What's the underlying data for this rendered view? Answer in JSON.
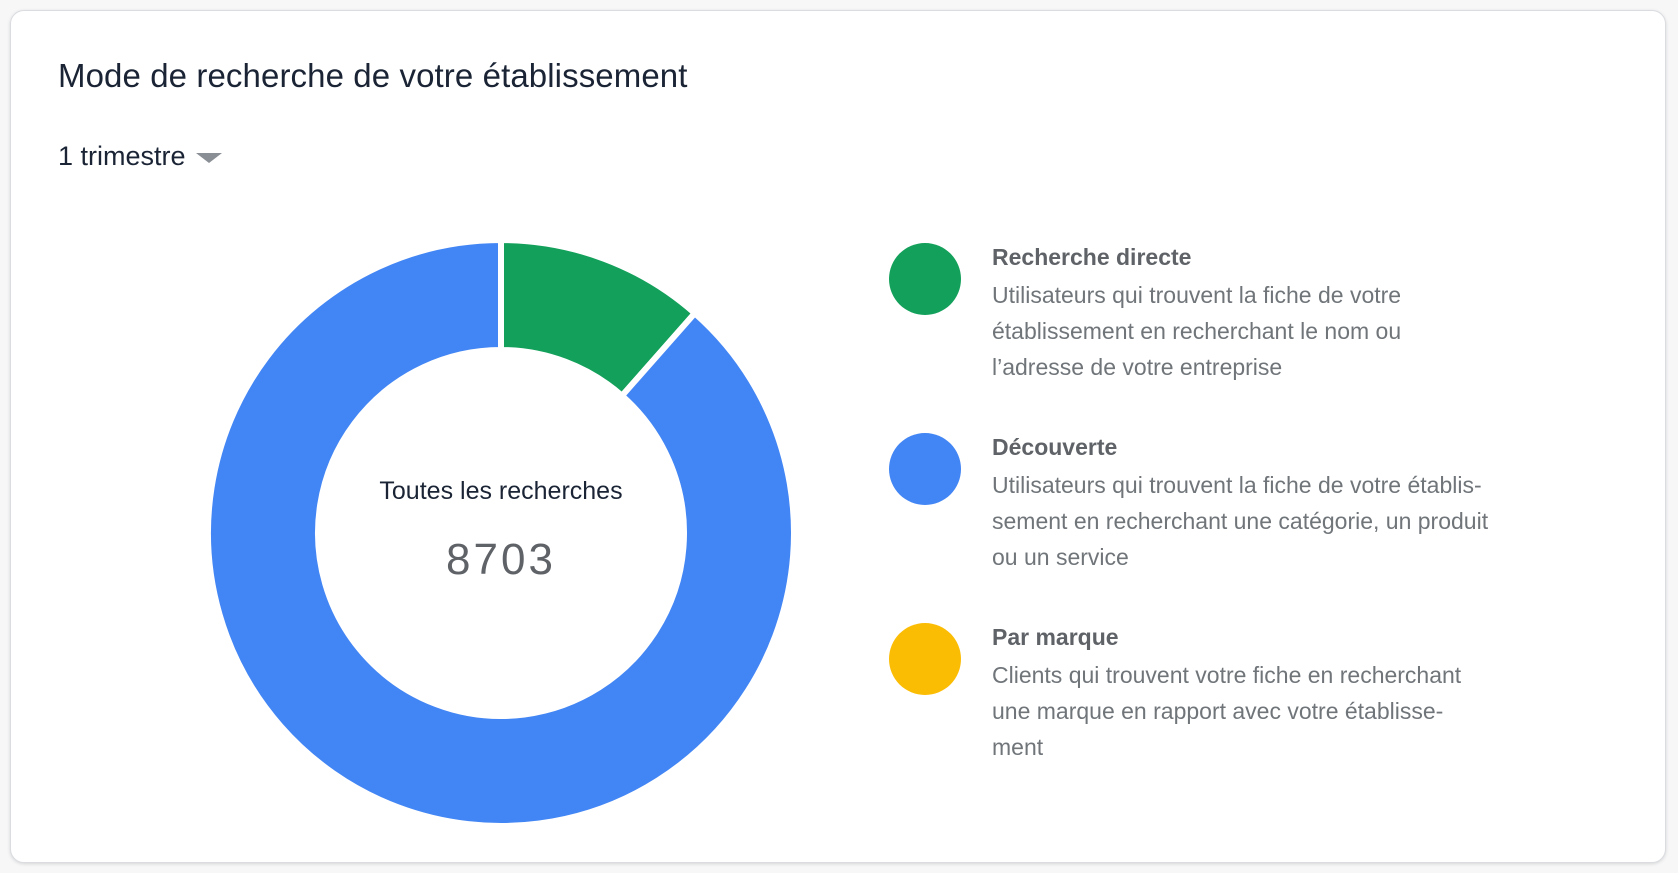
{
  "card": {
    "title": "Mode de recherche de votre établissement",
    "period": {
      "selected": "1 trimestre",
      "icon": "chevron-down-icon"
    }
  },
  "donut": {
    "center_label": "Toutes les recherches",
    "center_value": "8703"
  },
  "chart_data": {
    "type": "pie",
    "subtype": "donut",
    "title": "",
    "total_label": "Toutes les recherches",
    "total": 8703,
    "categories": [
      "Recherche directe",
      "Découverte",
      "Par marque"
    ],
    "values": [
      0.115,
      0.885,
      0.0
    ],
    "value_unit": "fraction of total (estimated from arc angles)",
    "colors": [
      "#12a05a",
      "#4285f4",
      "#fbbc04"
    ],
    "legend_placement": "right"
  },
  "legend": {
    "items": [
      {
        "title": "Recherche directe",
        "desc_lines": [
          "Utilisateurs qui trouvent la fiche de votre",
          "établissement en recherchant le nom ou",
          "l’adresse de votre entreprise"
        ],
        "color": "#12a05a"
      },
      {
        "title": "Découverte",
        "desc_lines": [
          "Utilisateurs qui trouvent la fiche de votre établis-",
          "sement en recherchant une catégorie, un produit",
          "ou un service"
        ],
        "color": "#4285f4"
      },
      {
        "title": "Par marque",
        "desc_lines": [
          "Clients qui trouvent votre fiche en recherchant",
          "une marque en rapport avec votre établisse-",
          "ment"
        ],
        "color": "#fbbc04"
      }
    ]
  }
}
